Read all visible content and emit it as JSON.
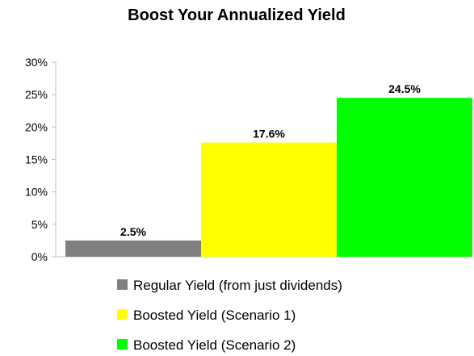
{
  "chart_data": {
    "type": "bar",
    "title": "Boost Your Annualized Yield",
    "xlabel": "",
    "ylabel": "",
    "ylim": [
      0,
      30
    ],
    "yticks": [
      0,
      5,
      10,
      15,
      20,
      25,
      30
    ],
    "ytick_format": "%",
    "grid": false,
    "legend_position": "bottom",
    "series": [
      {
        "name": "Regular Yield (from just dividends)",
        "value": 2.5,
        "label": "2.5%",
        "color": "#808080"
      },
      {
        "name": "Boosted Yield (Scenario 1)",
        "value": 17.6,
        "label": "17.6%",
        "color": "#ffff00"
      },
      {
        "name": "Boosted Yield (Scenario 2)",
        "value": 24.5,
        "label": "24.5%",
        "color": "#00ff00"
      }
    ]
  }
}
